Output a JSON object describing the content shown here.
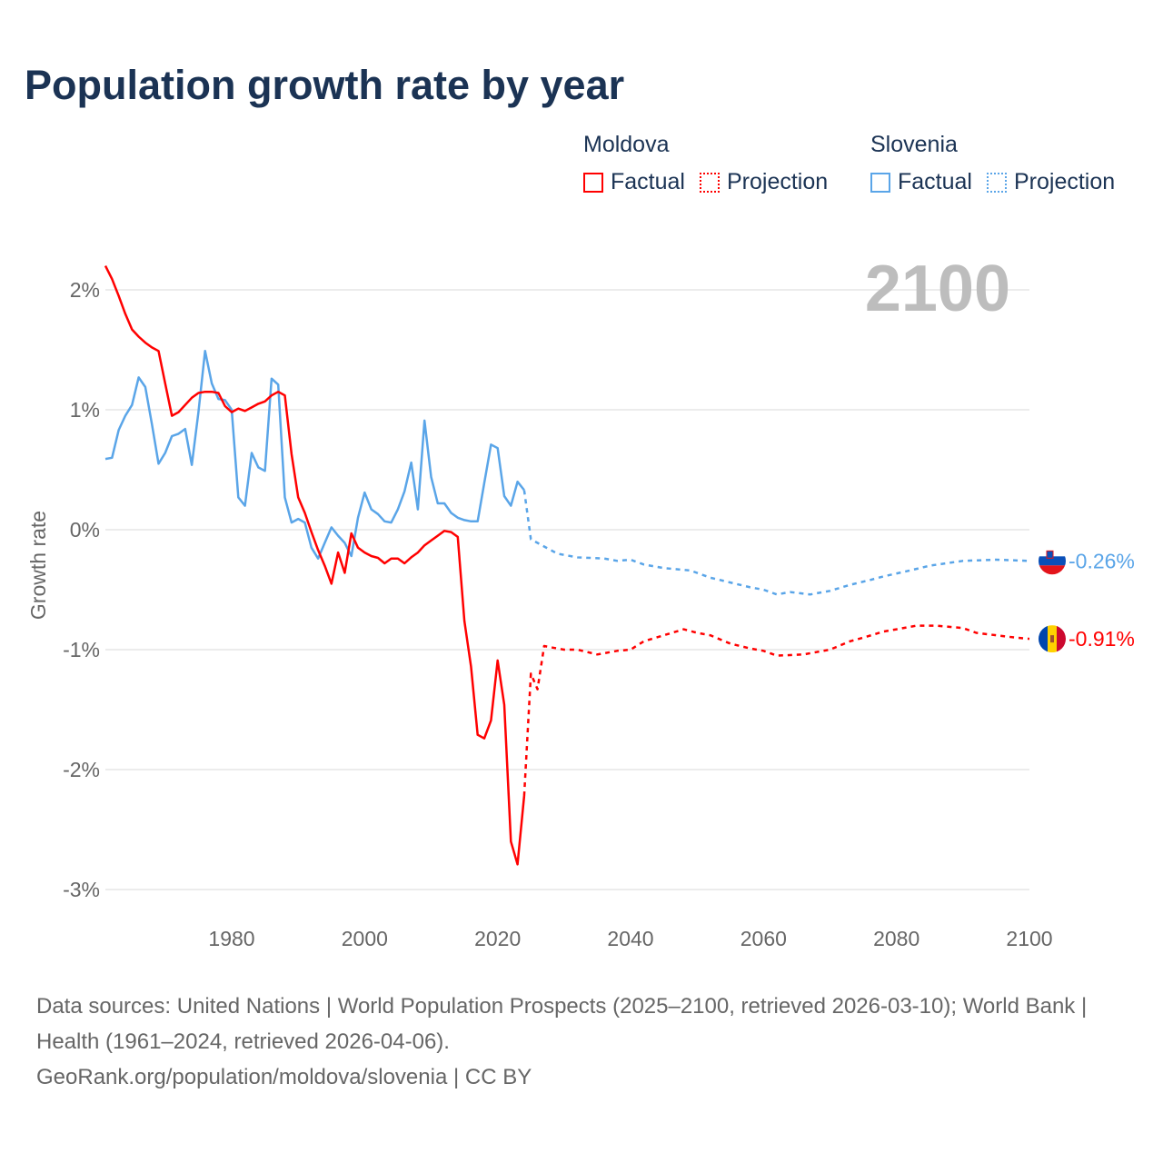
{
  "title": "Population growth rate by year",
  "legend": {
    "groups": [
      {
        "name": "Moldova",
        "color": "#ff0000",
        "factual": "Factual",
        "projection": "Projection"
      },
      {
        "name": "Slovenia",
        "color": "#5aa5e8",
        "factual": "Factual",
        "projection": "Projection"
      }
    ]
  },
  "year_display": "2100",
  "footer": {
    "line1": "Data sources: United Nations | World Population Prospects (2025–2100, retrieved 2026-03-10); World Bank | Health (1961–2024, retrieved 2026-04-06).",
    "line2": "GeoRank.org/population/moldova/slovenia | CC BY"
  },
  "chart_data": {
    "type": "line",
    "title": "Population growth rate by year",
    "xlabel": "",
    "ylabel": "Growth rate",
    "xlim": [
      1961,
      2100
    ],
    "ylim": [
      -3.2,
      2.35
    ],
    "xticks": [
      1980,
      2000,
      2020,
      2040,
      2060,
      2080,
      2100
    ],
    "xtick_labels": [
      "1980",
      "2000",
      "2020",
      "2040",
      "2060",
      "2080",
      "2100"
    ],
    "yticks": [
      2,
      1,
      0,
      -1,
      -2,
      -3
    ],
    "ytick_labels": [
      "2%",
      "1%",
      "0%",
      "-1%",
      "-2%",
      "-3%"
    ],
    "grid": true,
    "series": [
      {
        "name": "Moldova",
        "kind": "factual",
        "color": "#ff0000",
        "end_label": "",
        "x": [
          1961,
          1962,
          1963,
          1964,
          1965,
          1966,
          1967,
          1968,
          1969,
          1970,
          1971,
          1972,
          1973,
          1974,
          1975,
          1976,
          1977,
          1978,
          1979,
          1980,
          1981,
          1982,
          1983,
          1984,
          1985,
          1986,
          1987,
          1988,
          1989,
          1990,
          1991,
          1992,
          1993,
          1994,
          1995,
          1996,
          1997,
          1998,
          1999,
          2000,
          2001,
          2002,
          2003,
          2004,
          2005,
          2006,
          2007,
          2008,
          2009,
          2010,
          2011,
          2012,
          2013,
          2014,
          2015,
          2016,
          2017,
          2018,
          2019,
          2020,
          2021,
          2022,
          2023,
          2024
        ],
        "y": [
          2.2,
          2.09,
          1.95,
          1.8,
          1.67,
          1.61,
          1.56,
          1.52,
          1.49,
          1.22,
          0.95,
          0.98,
          1.04,
          1.1,
          1.14,
          1.15,
          1.15,
          1.14,
          1.03,
          0.98,
          1.01,
          0.99,
          1.02,
          1.05,
          1.07,
          1.12,
          1.15,
          1.12,
          0.63,
          0.27,
          0.14,
          -0.02,
          -0.17,
          -0.3,
          -0.45,
          -0.19,
          -0.36,
          -0.03,
          -0.15,
          -0.19,
          -0.22,
          -0.235,
          -0.28,
          -0.24,
          -0.24,
          -0.28,
          -0.23,
          -0.19,
          -0.13,
          -0.09,
          -0.05,
          -0.01,
          -0.02,
          -0.06,
          -0.76,
          -1.14,
          -1.71,
          -1.74,
          -1.59,
          -1.09,
          -1.46,
          -2.6,
          -2.79,
          -2.22
        ]
      },
      {
        "name": "Moldova",
        "kind": "projection",
        "color": "#ff0000",
        "end_label": "-0.91%",
        "x": [
          2025,
          2026,
          2027,
          2028,
          2030,
          2032,
          2035,
          2038,
          2040,
          2042,
          2045,
          2048,
          2050,
          2052,
          2055,
          2058,
          2060,
          2062,
          2066,
          2070,
          2073,
          2075,
          2078,
          2080,
          2083,
          2086,
          2090,
          2092,
          2095,
          2098,
          2100
        ],
        "y": [
          -1.2,
          -1.33,
          -0.97,
          -0.98,
          -1.0,
          -1.0,
          -1.04,
          -1.01,
          -1.0,
          -0.93,
          -0.88,
          -0.83,
          -0.86,
          -0.88,
          -0.95,
          -0.99,
          -1.01,
          -1.05,
          -1.04,
          -1.0,
          -0.93,
          -0.9,
          -0.85,
          -0.83,
          -0.8,
          -0.8,
          -0.82,
          -0.86,
          -0.88,
          -0.9,
          -0.91
        ]
      },
      {
        "name": "Slovenia",
        "kind": "factual",
        "color": "#5aa5e8",
        "end_label": "",
        "x": [
          1961,
          1962,
          1963,
          1964,
          1965,
          1966,
          1967,
          1968,
          1969,
          1970,
          1971,
          1972,
          1973,
          1974,
          1975,
          1976,
          1977,
          1978,
          1979,
          1980,
          1981,
          1982,
          1983,
          1984,
          1985,
          1986,
          1987,
          1988,
          1989,
          1990,
          1991,
          1992,
          1993,
          1994,
          1995,
          1996,
          1997,
          1998,
          1999,
          2000,
          2001,
          2002,
          2003,
          2004,
          2005,
          2006,
          2007,
          2008,
          2009,
          2010,
          2011,
          2012,
          2013,
          2014,
          2015,
          2016,
          2017,
          2018,
          2019,
          2020,
          2021,
          2022,
          2023,
          2024
        ],
        "y": [
          0.59,
          0.6,
          0.83,
          0.95,
          1.04,
          1.27,
          1.19,
          0.88,
          0.55,
          0.64,
          0.78,
          0.8,
          0.84,
          0.54,
          0.98,
          1.49,
          1.22,
          1.09,
          1.08,
          1.0,
          0.27,
          0.2,
          0.64,
          0.52,
          0.49,
          1.26,
          1.21,
          0.27,
          0.06,
          0.09,
          0.06,
          -0.15,
          -0.24,
          -0.11,
          0.02,
          -0.05,
          -0.11,
          -0.22,
          0.1,
          0.31,
          0.17,
          0.13,
          0.07,
          0.06,
          0.17,
          0.32,
          0.56,
          0.17,
          0.91,
          0.44,
          0.22,
          0.22,
          0.14,
          0.1,
          0.08,
          0.07,
          0.07,
          0.39,
          0.71,
          0.68,
          0.28,
          0.2,
          0.4,
          0.33
        ]
      },
      {
        "name": "Slovenia",
        "kind": "projection",
        "color": "#5aa5e8",
        "end_label": "-0.26%",
        "x": [
          2025,
          2026,
          2027,
          2029,
          2032,
          2036,
          2038,
          2040,
          2042,
          2045,
          2049,
          2052,
          2055,
          2058,
          2060,
          2062,
          2064,
          2067,
          2070,
          2073,
          2076,
          2078,
          2082,
          2085,
          2090,
          2095,
          2100
        ],
        "y": [
          -0.08,
          -0.11,
          -0.14,
          -0.2,
          -0.23,
          -0.24,
          -0.26,
          -0.25,
          -0.29,
          -0.32,
          -0.34,
          -0.4,
          -0.44,
          -0.48,
          -0.5,
          -0.54,
          -0.52,
          -0.54,
          -0.51,
          -0.46,
          -0.42,
          -0.39,
          -0.34,
          -0.3,
          -0.26,
          -0.25,
          -0.26
        ]
      }
    ]
  }
}
